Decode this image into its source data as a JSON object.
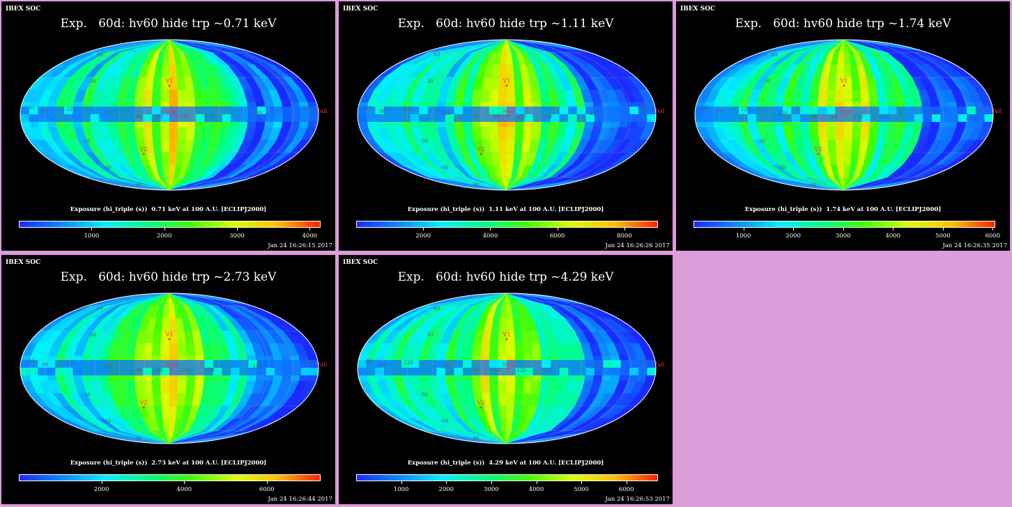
{
  "source_label": "IBEX SOC",
  "panels": [
    {
      "title": "Exp.   60d: hv60 hide trp ~0.71 keV",
      "caption": "Exposure (hi_triple (s))  0.71 keV at 100 A.U. [ECLIPJ2000]",
      "timestamp": "Jan 24 16:26:15 2017",
      "ticks": [
        "1000",
        "2000",
        "3000",
        "4000"
      ],
      "tick_values": [
        1000,
        2000,
        3000,
        4000
      ],
      "scale_max": 4150
    },
    {
      "title": "Exp.   60d: hv60 hide trp ~1.11 keV",
      "caption": "Exposure (hi_triple (s))  1.11 keV at 100 A.U. [ECLIPJ2000]",
      "timestamp": "Jan 24 16:26:26 2017",
      "ticks": [
        "2000",
        "4000",
        "6000",
        "8000"
      ],
      "tick_values": [
        2000,
        4000,
        6000,
        8000
      ],
      "scale_max": 9000
    },
    {
      "title": "Exp.   60d: hv60 hide trp ~1.74 keV",
      "caption": "Exposure (hi_triple (s))  1.74 keV at 100 A.U. [ECLIPJ2000]",
      "timestamp": "Jan 24 16:26:35 2017",
      "ticks": [
        "1000",
        "2000",
        "3000",
        "4000",
        "5000",
        "6000"
      ],
      "tick_values": [
        1000,
        2000,
        3000,
        4000,
        5000,
        6000
      ],
      "scale_max": 6050
    },
    {
      "title": "Exp.   60d: hv60 hide trp ~2.73 keV",
      "caption": "Exposure (hi_triple (s))  2.73 keV at 100 A.U. [ECLIPJ2000]",
      "timestamp": "Jan 24 16:26:44 2017",
      "ticks": [
        "2000",
        "4000",
        "6000"
      ],
      "tick_values": [
        2000,
        4000,
        6000
      ],
      "scale_max": 7300
    },
    {
      "title": "Exp.   60d: hv60 hide trp ~4.29 keV",
      "caption": "Exposure (hi_triple (s))  4.29 keV at 100 A.U. [ECLIPJ2000]",
      "timestamp": "Jan 24 16:26:53 2017",
      "ticks": [
        "1000",
        "2000",
        "3000",
        "4000",
        "5000",
        "6000"
      ],
      "tick_values": [
        1000,
        2000,
        3000,
        4000,
        5000,
        6000
      ],
      "scale_max": 6700
    }
  ],
  "map_labels": {
    "v1": "V1",
    "v2": "V2",
    "nose": "Nose",
    "tail": "Tail",
    "lat_60": "60",
    "lat_30": "30",
    "lat_m30": "-30",
    "lat_m60": "-60",
    "lat_m90": "-90",
    "lon_150": "150",
    "lon_120": "120",
    "lon_90": "90",
    "lon_60": "60",
    "lon_m90": "-90",
    "lon_m60": "-60",
    "lon_m120": "-120",
    "lon_m150": "-150",
    "lon_180": "180",
    "lon_90_right": "90"
  },
  "colors": {
    "background": "#dc9ddb",
    "panel": "#000000",
    "colormap": [
      "#1a2bff",
      "#0a8cff",
      "#00f0ff",
      "#00ff80",
      "#40ff00",
      "#d8ff00",
      "#ffc000",
      "#ff2000"
    ]
  }
}
